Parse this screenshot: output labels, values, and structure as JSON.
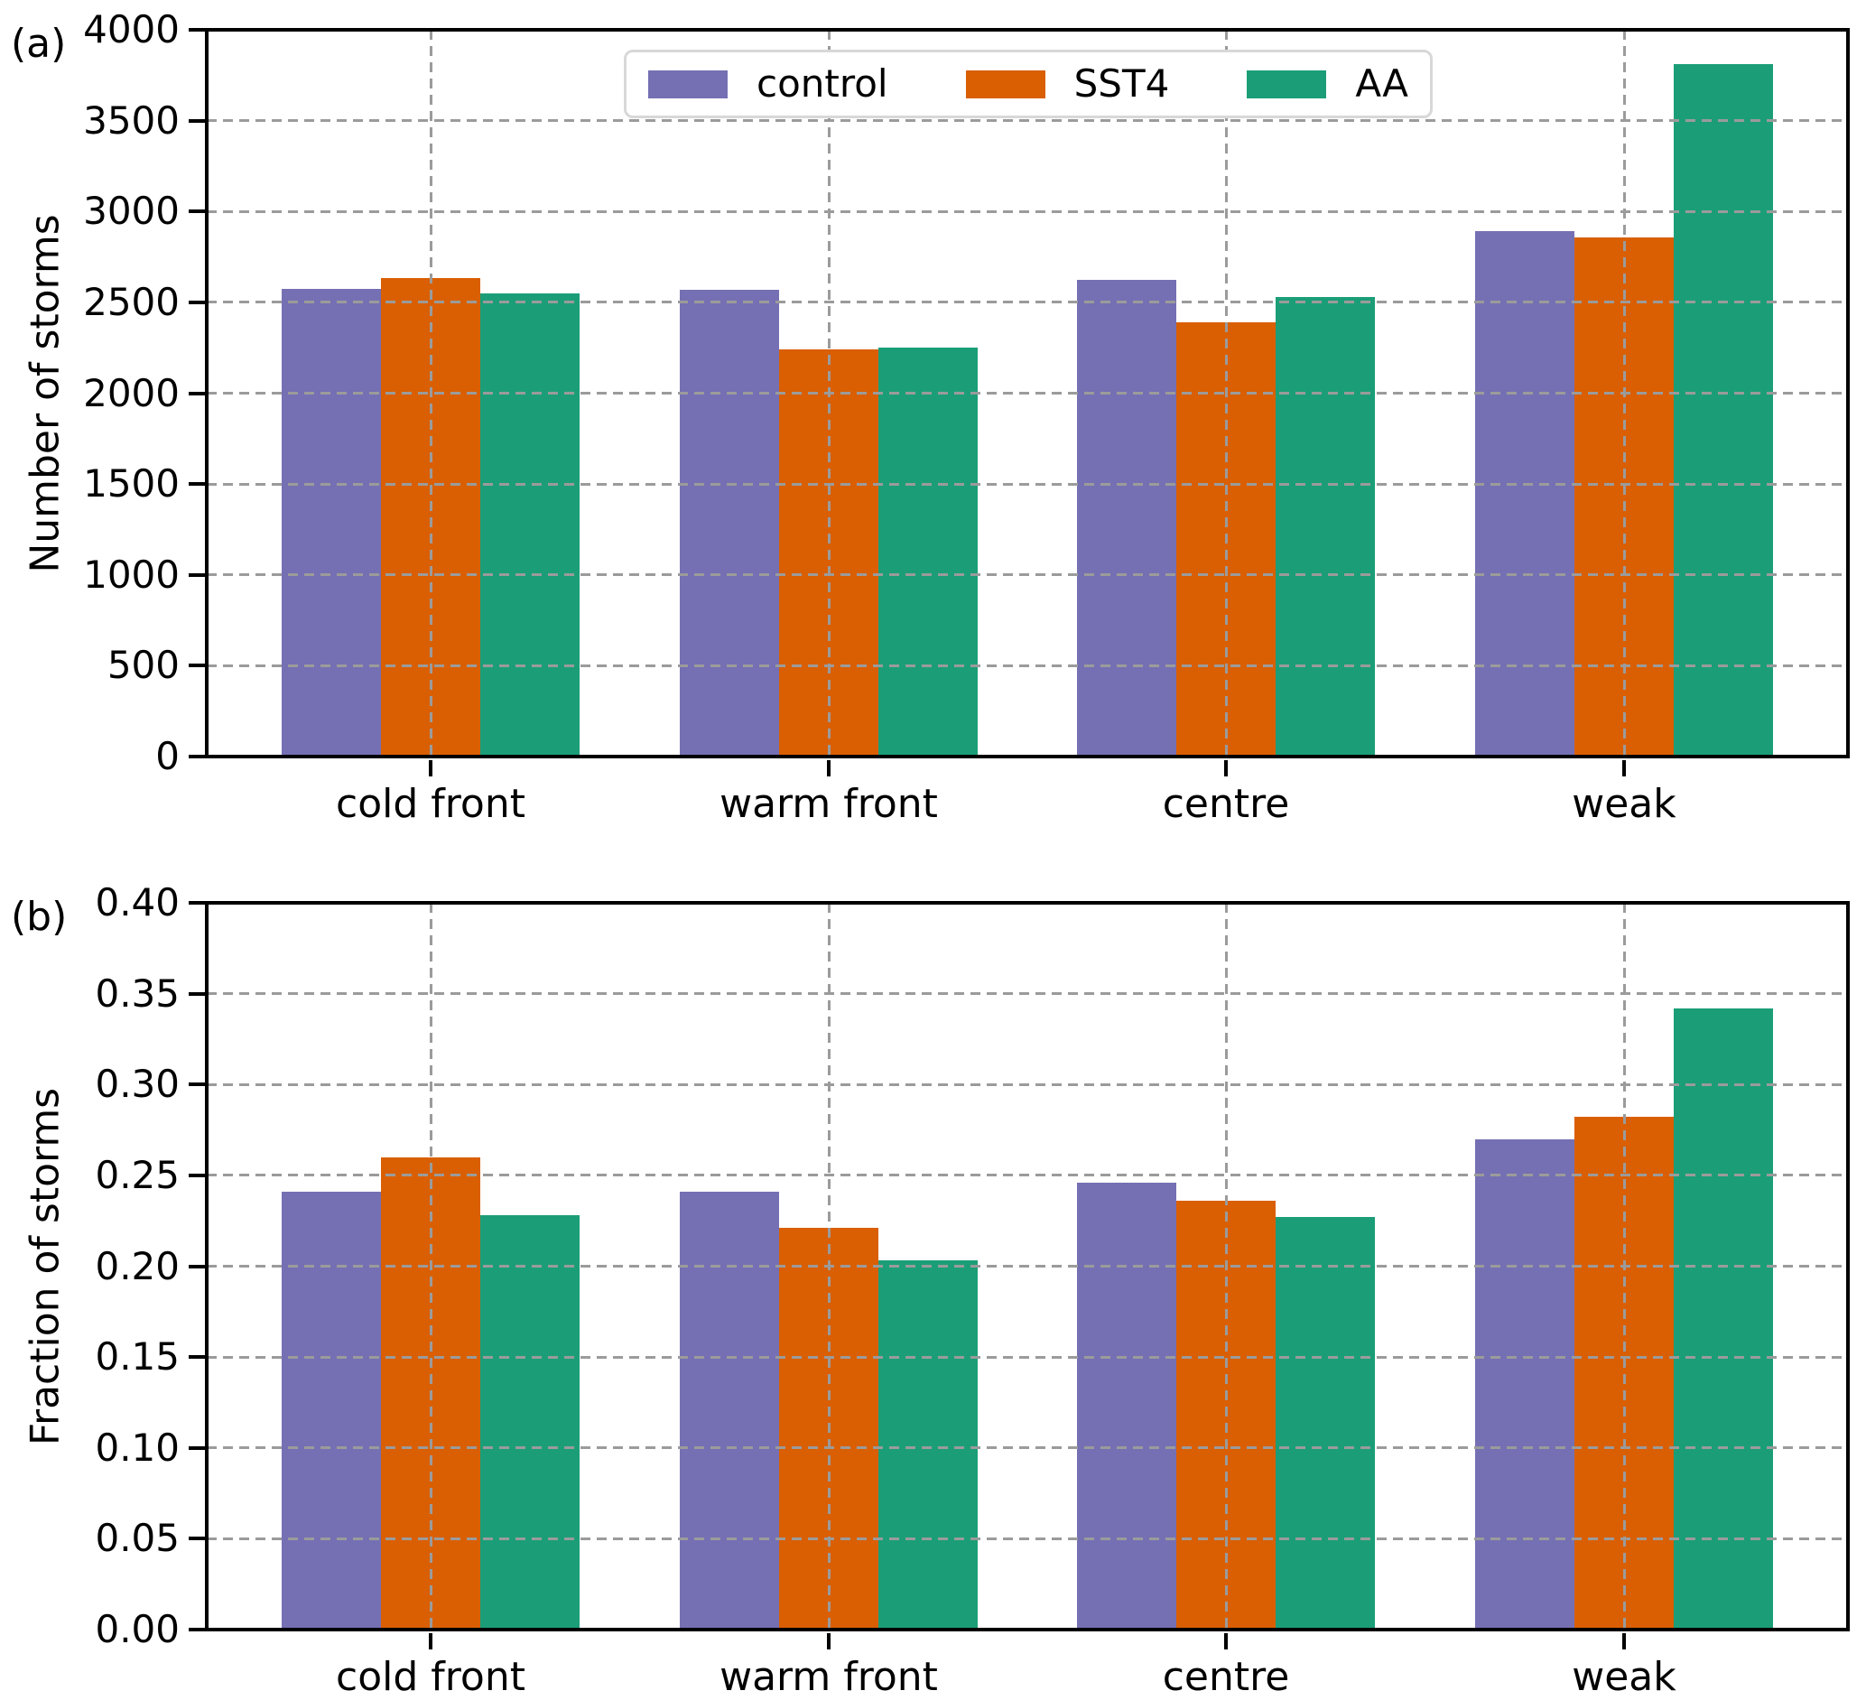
{
  "figure_title": "",
  "chart_data": [
    {
      "type": "bar",
      "panel_label": "(a)",
      "ylabel": "Number of storms",
      "xlabel": "",
      "categories": [
        "cold front",
        "warm front",
        "centre",
        "weak"
      ],
      "series": [
        {
          "name": "control",
          "color": "#7570b3",
          "values": [
            2575,
            2570,
            2625,
            2890
          ]
        },
        {
          "name": "SST4",
          "color": "#d95f02",
          "values": [
            2635,
            2240,
            2390,
            2855
          ]
        },
        {
          "name": "AA",
          "color": "#1b9e77",
          "values": [
            2550,
            2250,
            2530,
            3810
          ]
        }
      ],
      "ylim": [
        0,
        4000
      ],
      "ytick_step": 500,
      "ytick_labels": [
        "0",
        "500",
        "1000",
        "1500",
        "2000",
        "2500",
        "3000",
        "3500",
        "4000"
      ],
      "grid": "dashed, drawn above bars",
      "legend_position": "upper center",
      "legend_labels": [
        "control",
        "SST4",
        "AA"
      ]
    },
    {
      "type": "bar",
      "panel_label": "(b)",
      "ylabel": "Fraction of storms",
      "xlabel": "",
      "categories": [
        "cold front",
        "warm front",
        "centre",
        "weak"
      ],
      "series": [
        {
          "name": "control",
          "color": "#7570b3",
          "values": [
            0.241,
            0.241,
            0.246,
            0.27
          ]
        },
        {
          "name": "SST4",
          "color": "#d95f02",
          "values": [
            0.26,
            0.221,
            0.236,
            0.282
          ]
        },
        {
          "name": "AA",
          "color": "#1b9e77",
          "values": [
            0.228,
            0.203,
            0.227,
            0.342
          ]
        }
      ],
      "ylim": [
        0,
        0.4
      ],
      "ytick_step": 0.05,
      "ytick_labels": [
        "0.00",
        "0.05",
        "0.10",
        "0.15",
        "0.20",
        "0.25",
        "0.30",
        "0.35",
        "0.40"
      ],
      "grid": "dashed, drawn above bars",
      "legend_position": "none",
      "legend_labels": []
    }
  ],
  "colors": {
    "control": "#7570b3",
    "SST4": "#d95f02",
    "AA": "#1b9e77",
    "gridline": "#9b9b9b",
    "spine": "#000000",
    "background": "#ffffff",
    "legend_border": "#d8d8d8"
  }
}
